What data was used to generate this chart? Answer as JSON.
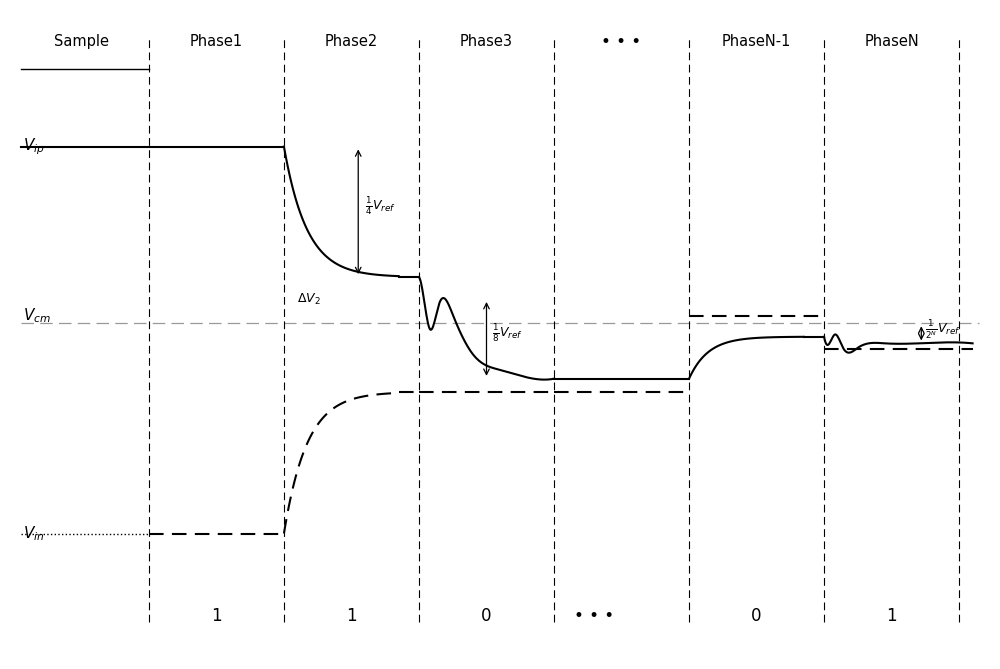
{
  "background_color": "#ffffff",
  "phase_labels": [
    "Sample",
    "Phase1",
    "Phase2",
    "Phase3",
    "• • •",
    "PhaseN-1",
    "PhaseN"
  ],
  "phase_centers": [
    0.5,
    1.5,
    2.5,
    3.5,
    4.5,
    5.5,
    6.5
  ],
  "divider_x": [
    1.0,
    2.0,
    3.0,
    4.0,
    5.0,
    6.0,
    7.0
  ],
  "xlim": [
    0.0,
    7.2
  ],
  "ylim": [
    -3.0,
    2.8
  ],
  "vcm": 0.0,
  "vip_level": 1.6,
  "vin_level": -1.9,
  "vip_settle": -0.42,
  "phase2_settle": -0.42,
  "phase3_settle": -0.78,
  "phaseN_settle": -0.18,
  "phaseN_dashed_settle": -0.22
}
